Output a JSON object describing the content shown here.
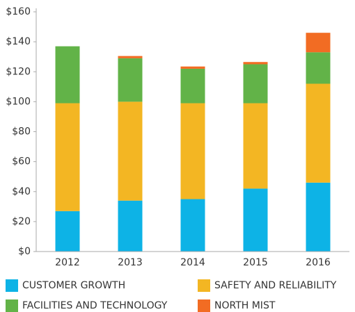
{
  "chart_data": {
    "type": "stacked_bar",
    "categories": [
      "2012",
      "2013",
      "2014",
      "2015",
      "2016"
    ],
    "series": [
      {
        "name": "CUSTOMER GROWTH",
        "color": "#0db3e6",
        "values": [
          27,
          34,
          35,
          42,
          46
        ]
      },
      {
        "name": "SAFETY AND RELIABILITY",
        "color": "#f3b623",
        "values": [
          72,
          66,
          64,
          57,
          66
        ]
      },
      {
        "name": "FACILITIES AND TECHNOLOGY",
        "color": "#62b348",
        "values": [
          38,
          29,
          23,
          26,
          21
        ]
      },
      {
        "name": "NORTH MIST",
        "color": "#f26c23",
        "values": [
          0,
          1.5,
          1.5,
          1.5,
          13
        ]
      }
    ],
    "ylim": [
      0,
      160
    ],
    "yticks": [
      {
        "value": 0,
        "label": "$0"
      },
      {
        "value": 20,
        "label": "$20"
      },
      {
        "value": 40,
        "label": "$40"
      },
      {
        "value": 60,
        "label": "$60"
      },
      {
        "value": 80,
        "label": "$80"
      },
      {
        "value": 100,
        "label": "$100"
      },
      {
        "value": 120,
        "label": "$120"
      },
      {
        "value": 140,
        "label": "$140"
      },
      {
        "value": 160,
        "label": "$160"
      }
    ],
    "grid": false
  }
}
